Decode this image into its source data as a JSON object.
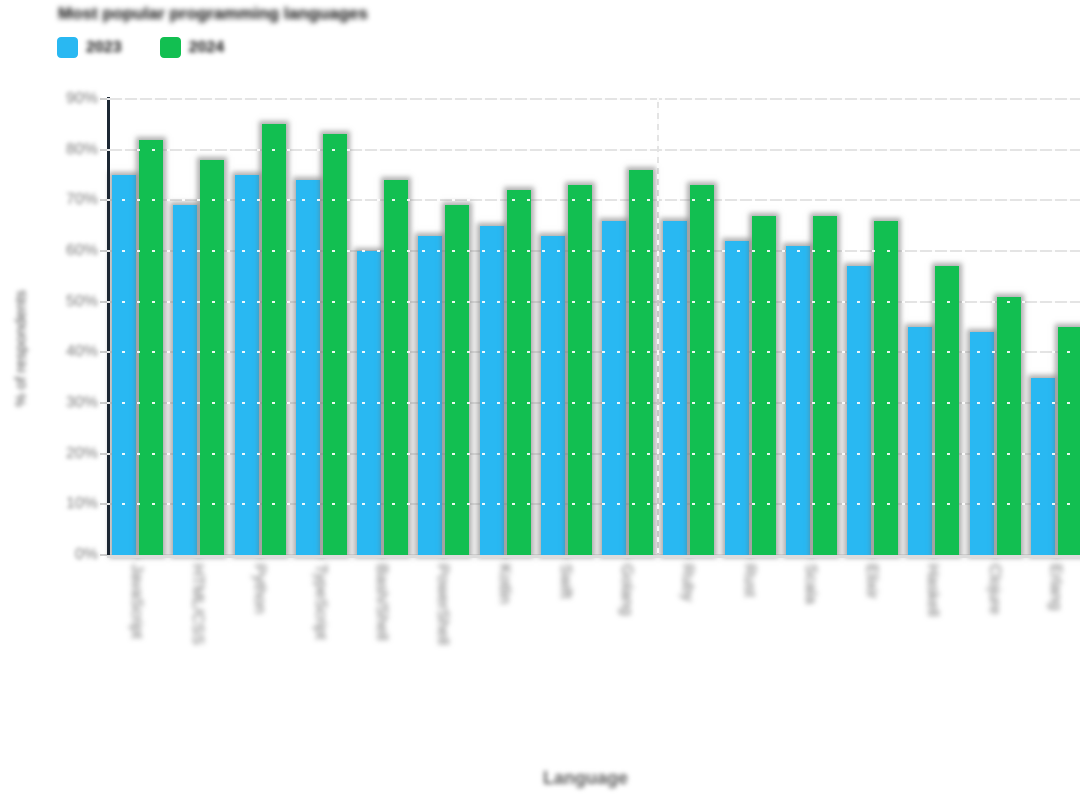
{
  "title": "Most popular programming languages",
  "legend": {
    "items": [
      {
        "label": "2023",
        "color": "#29b8f2"
      },
      {
        "label": "2024",
        "color": "#12bf51"
      }
    ]
  },
  "axes": {
    "x_title": "Language",
    "y_title": "% of respondents",
    "y_tick_labels": [
      "0%",
      "10%",
      "20%",
      "30%",
      "40%",
      "50%",
      "60%",
      "70%",
      "80%",
      "90%"
    ]
  },
  "chart_data": {
    "type": "bar",
    "title": "Most popular programming languages",
    "xlabel": "Language",
    "ylabel": "% of respondents",
    "ylim": [
      0,
      90
    ],
    "y_tick_step": 10,
    "grid": true,
    "legend_position": "top-left",
    "categories": [
      "JavaScript",
      "HTML/CSS",
      "Python",
      "TypeScript",
      "Bash/Shell",
      "PowerShell",
      "Kotlin",
      "Swift",
      "Golang",
      "Ruby",
      "Rust",
      "Scala",
      "Elixir",
      "Haskell",
      "Clojure",
      "Erlang"
    ],
    "series": [
      {
        "name": "2023",
        "color": "#29b8f2",
        "values": [
          75,
          69,
          75,
          74,
          60,
          63,
          65,
          63,
          66,
          66,
          62,
          61,
          57,
          45,
          44,
          35
        ]
      },
      {
        "name": "2024",
        "color": "#12bf51",
        "values": [
          82,
          78,
          85,
          83,
          74,
          69,
          72,
          73,
          76,
          73,
          67,
          67,
          66,
          57,
          51,
          45
        ]
      }
    ],
    "vertical_divider_after_category_index": 8
  },
  "colors": {
    "gridline": "#e4e4e4",
    "y_axis_line": "#1c2733",
    "x_axis_line": "#dcdcdc",
    "tick_text": "#7a7a7a",
    "title_text": "#0d0d0d"
  }
}
